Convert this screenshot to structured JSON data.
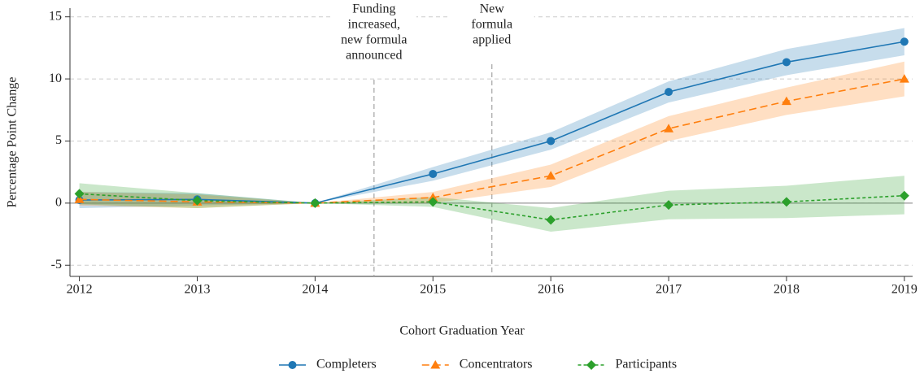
{
  "chart_data": {
    "type": "line",
    "x_label": "Cohort Graduation Year",
    "y_label": "Percentage Point Change",
    "x": [
      2012,
      2013,
      2014,
      2015,
      2016,
      2017,
      2018,
      2019
    ],
    "xlim": [
      2011.92,
      2019.07
    ],
    "xticks": [
      2012,
      2013,
      2014,
      2015,
      2016,
      2017,
      2018,
      2019
    ],
    "ylim": [
      -5.9,
      15.7
    ],
    "yticks": [
      15,
      10,
      5,
      0,
      -5
    ],
    "grid": true,
    "legend": "bottom",
    "series": [
      {
        "name": "Completers",
        "color": "#1f77b4",
        "marker": "circle",
        "dash": "solid",
        "values": [
          0.25,
          0.3,
          0,
          2.35,
          5.0,
          8.95,
          11.35,
          13.0
        ],
        "lower": [
          -0.4,
          -0.2,
          0,
          1.8,
          4.3,
          8.1,
          10.3,
          11.9
        ],
        "upper": [
          0.9,
          0.8,
          0,
          2.9,
          5.7,
          9.8,
          12.4,
          14.1
        ]
      },
      {
        "name": "Concentrators",
        "color": "#ff7f0e",
        "marker": "triangle",
        "dash": "long",
        "values": [
          0.3,
          0.1,
          0,
          0.45,
          2.2,
          6.0,
          8.2,
          10.0
        ],
        "lower": [
          -0.2,
          -0.4,
          0,
          0,
          1.3,
          5.0,
          7.1,
          8.6
        ],
        "upper": [
          0.9,
          0.7,
          0,
          0.9,
          3.1,
          7.0,
          9.3,
          11.4
        ]
      },
      {
        "name": "Participants",
        "color": "#2ca02c",
        "marker": "diamond",
        "dash": "short",
        "values": [
          0.75,
          0.2,
          0,
          0.1,
          -1.35,
          -0.15,
          0.1,
          0.6
        ],
        "lower": [
          -0.1,
          -0.4,
          0,
          -0.3,
          -2.3,
          -1.3,
          -1.2,
          -0.9
        ],
        "upper": [
          1.6,
          0.8,
          0,
          0.5,
          -0.4,
          1.0,
          1.4,
          2.2
        ]
      }
    ],
    "annotations": [
      {
        "x": 2014.5,
        "lines": [
          "Funding",
          "increased,",
          "new formula",
          "announced"
        ]
      },
      {
        "x": 2015.5,
        "lines": [
          "New",
          "formula",
          "applied"
        ]
      }
    ]
  }
}
